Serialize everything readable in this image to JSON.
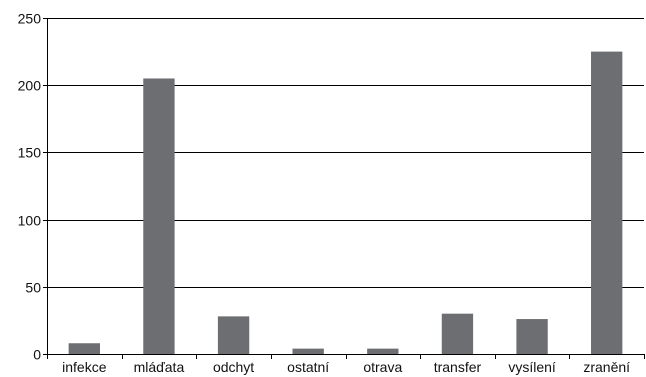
{
  "chart_data": {
    "type": "bar",
    "title": "",
    "xlabel": "",
    "ylabel": "",
    "categories": [
      "infekce",
      "mláďata",
      "odchyt",
      "ostatní",
      "otrava",
      "transfer",
      "vysílení",
      "zranění"
    ],
    "values": [
      8,
      205,
      28,
      4,
      4,
      30,
      26,
      225
    ],
    "ylim": [
      0,
      250
    ],
    "yticks": [
      0,
      50,
      100,
      150,
      200,
      250
    ],
    "grid": true,
    "legend": "none",
    "bar_color": "#6d6e71"
  }
}
